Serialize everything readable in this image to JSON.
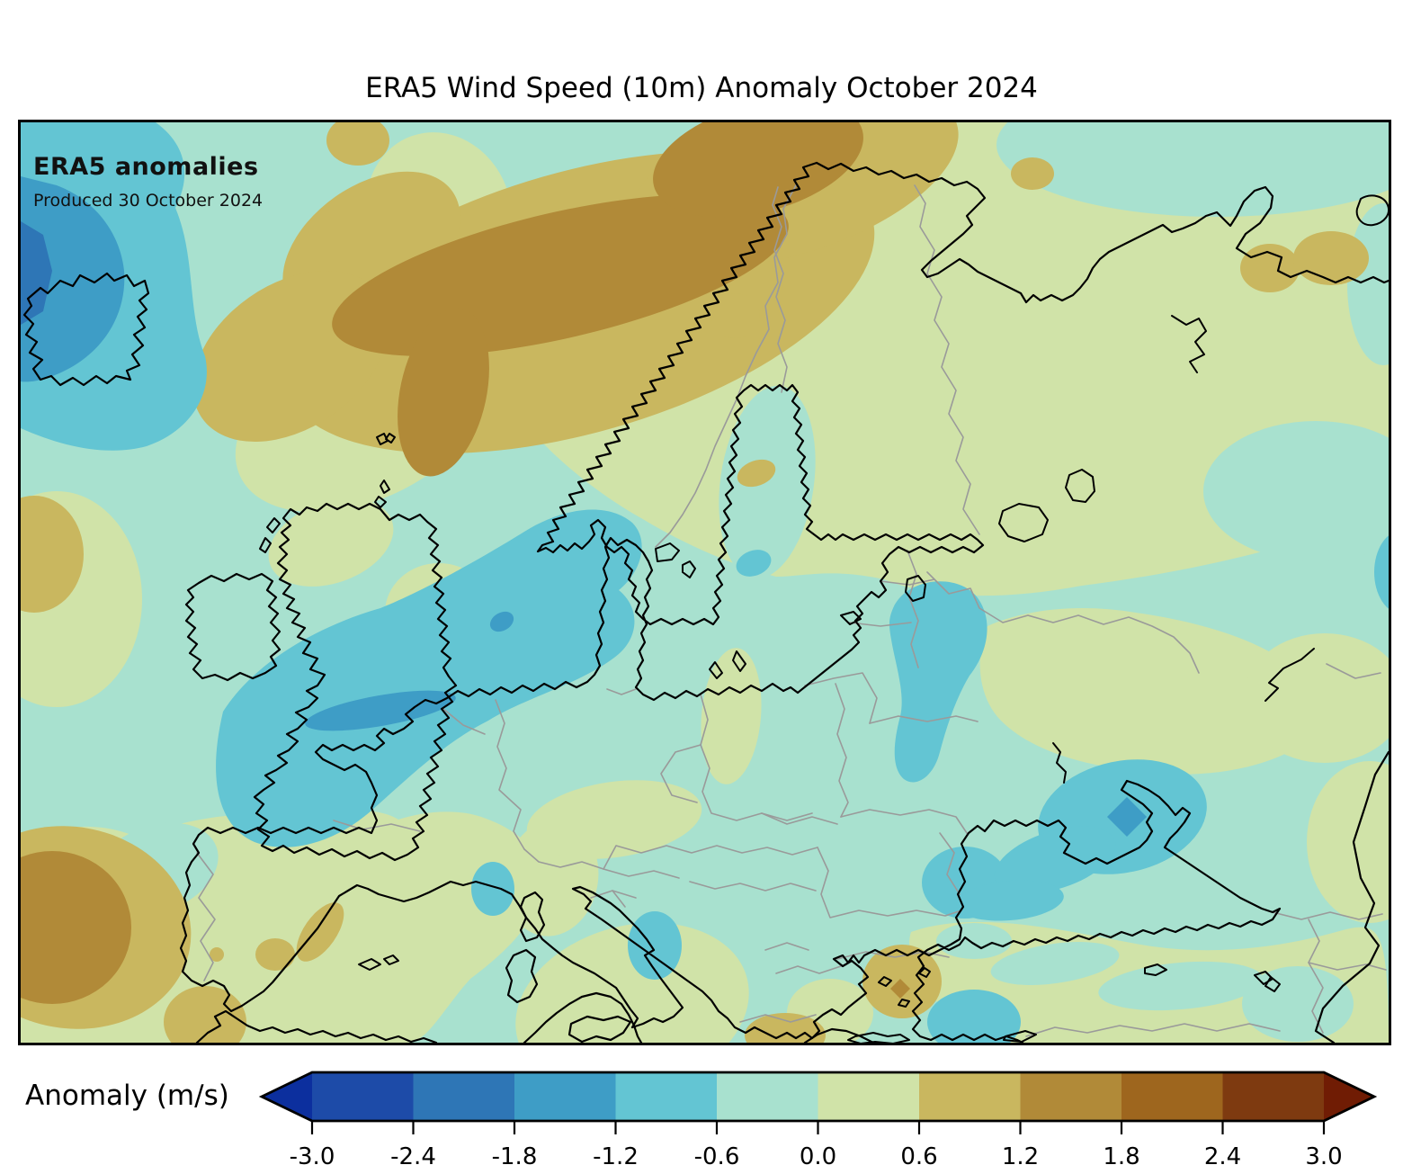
{
  "title": "ERA5 Wind Speed (10m) Anomaly October 2024",
  "map": {
    "heading": "ERA5 anomalies",
    "produced": "Produced 30 October 2024"
  },
  "colorbar": {
    "label": "Anomaly (m/s)",
    "ticks": [
      "-3.0",
      "-2.4",
      "-1.8",
      "-1.2",
      "-0.6",
      "0.0",
      "0.6",
      "1.2",
      "1.8",
      "2.4",
      "3.0"
    ],
    "range_min": -3.0,
    "range_max": 3.0,
    "step": 0.6,
    "segment_colors": [
      "#1d4ba8",
      "#2e76b6",
      "#3e9dc6",
      "#63c5d3",
      "#a8e1cf",
      "#d0e3a8",
      "#c9b75f",
      "#b18a38",
      "#9e661e",
      "#7e3a10"
    ],
    "under_color": "#0c2f9e",
    "over_color": "#701c04"
  },
  "colors": {
    "coastline": "#000000",
    "country_border": "#9a9a9a",
    "map_frame": "#000000",
    "background": "#ffffff",
    "text": "#000000"
  }
}
